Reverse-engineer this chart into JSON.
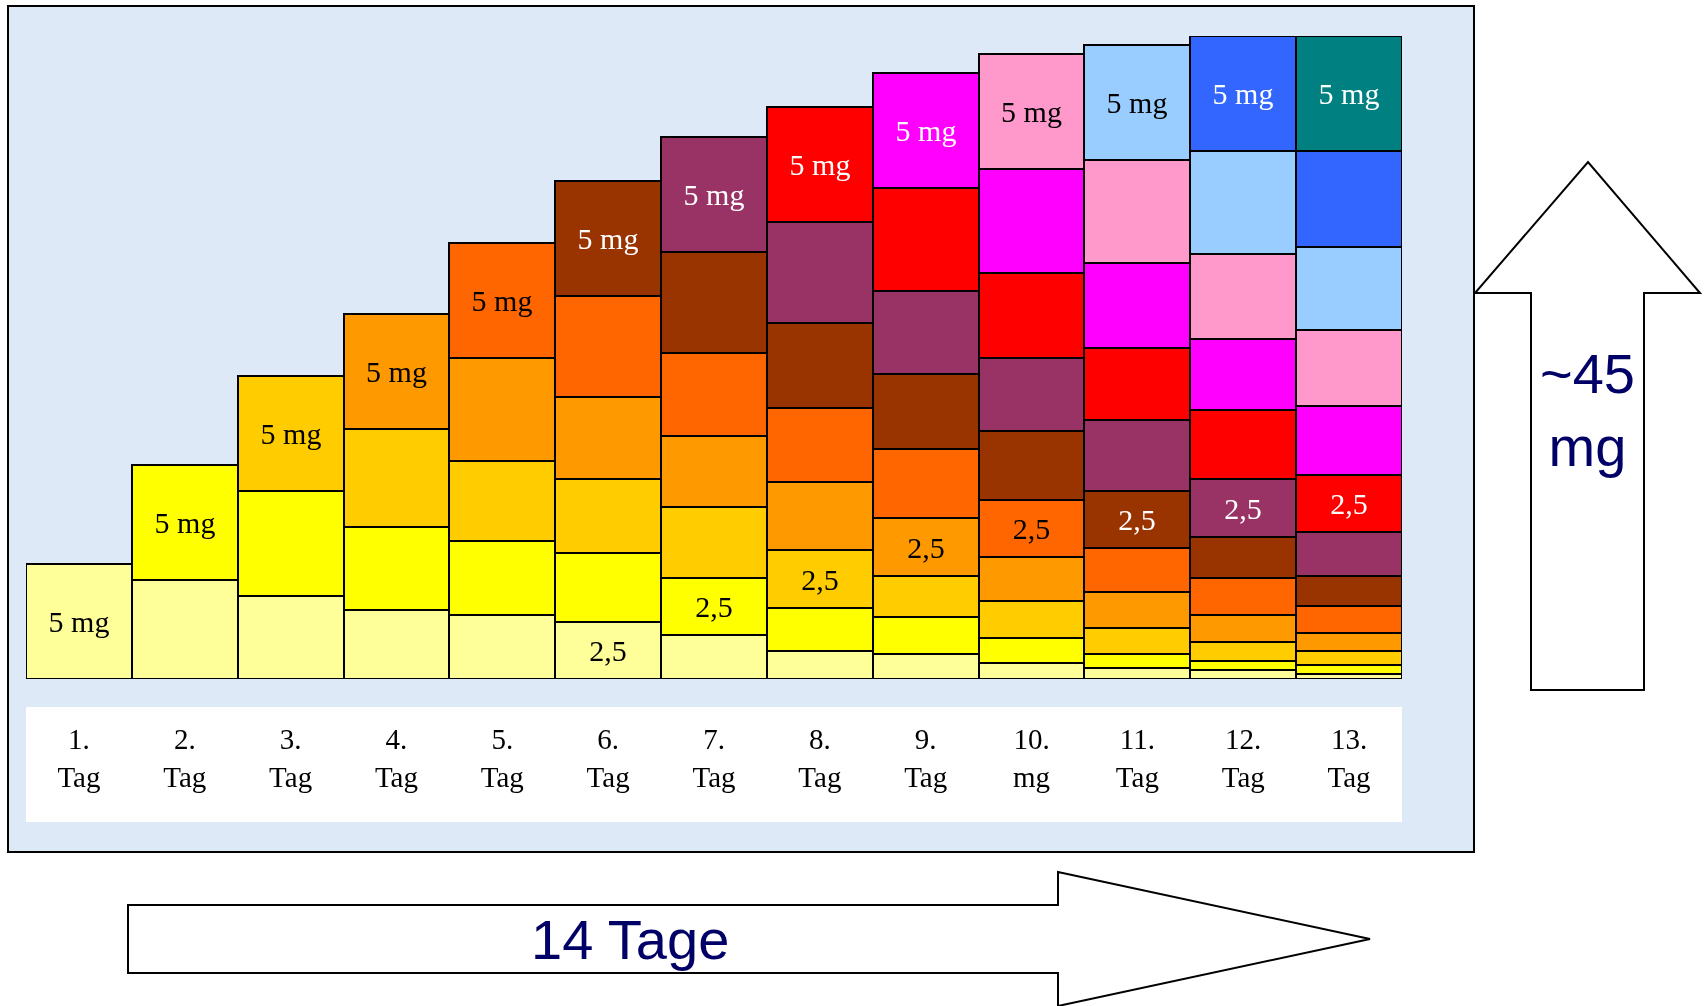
{
  "chart_data": {
    "type": "bar",
    "stacked": true,
    "tick_labels": "x",
    "categories": [
      "1.\nTag",
      "2.\nTag",
      "3.\nTag",
      "4.\nTag",
      "5.\nTag",
      "6.\nTag",
      "7.\nTag",
      "8.\nTag",
      "9.\nTag",
      "10.\nmg",
      "11.\nTag",
      "12.\nTag",
      "13.\nTag"
    ],
    "series": [
      {
        "color": "#ffff99",
        "values": [
          5,
          4.3,
          3.6,
          3.0,
          2.8,
          2.5,
          1.9,
          1.2,
          1.1,
          0.7,
          0.5,
          0.4,
          0.2
        ],
        "value_labels": [
          "5 mg",
          null,
          null,
          null,
          null,
          "2,5",
          null,
          null,
          null,
          null,
          null,
          null,
          null
        ]
      },
      {
        "color": "#ffff00",
        "values": [
          null,
          5,
          4.6,
          3.6,
          3.2,
          3.0,
          2.5,
          1.9,
          1.6,
          1.1,
          0.6,
          0.4,
          0.4
        ],
        "value_labels": [
          null,
          "5 mg",
          null,
          null,
          null,
          null,
          "2,5",
          null,
          null,
          null,
          null,
          null,
          null
        ]
      },
      {
        "color": "#ffcc00",
        "values": [
          null,
          null,
          5,
          4.3,
          3.5,
          3.2,
          3.1,
          2.5,
          1.8,
          1.6,
          1.1,
          0.8,
          0.6
        ],
        "value_labels": [
          null,
          null,
          "5 mg",
          null,
          null,
          null,
          null,
          "2,5",
          null,
          null,
          null,
          null,
          null
        ]
      },
      {
        "color": "#ff9900",
        "values": [
          null,
          null,
          null,
          5,
          4.5,
          3.6,
          3.1,
          3.0,
          2.5,
          1.9,
          1.6,
          1.2,
          0.8
        ],
        "value_labels": [
          null,
          null,
          null,
          "5 mg",
          null,
          null,
          null,
          null,
          "2,5",
          null,
          null,
          null,
          null
        ]
      },
      {
        "color": "#ff6600",
        "values": [
          null,
          null,
          null,
          null,
          5,
          4.4,
          3.6,
          3.2,
          3.0,
          2.5,
          1.9,
          1.6,
          1.2
        ],
        "value_labels": [
          null,
          null,
          null,
          null,
          "5 mg",
          null,
          null,
          null,
          null,
          "2,5",
          null,
          null,
          null
        ]
      },
      {
        "color": "#993300",
        "values": [
          null,
          null,
          null,
          null,
          null,
          5,
          4.4,
          3.7,
          3.3,
          3.0,
          2.5,
          1.8,
          1.3
        ],
        "value_labels": [
          null,
          null,
          null,
          null,
          null,
          "5 mg",
          null,
          null,
          null,
          null,
          "2,5",
          null,
          null
        ]
      },
      {
        "color": "#993366",
        "values": [
          null,
          null,
          null,
          null,
          null,
          null,
          5,
          4.4,
          3.6,
          3.2,
          3.1,
          2.5,
          1.9
        ],
        "value_labels": [
          null,
          null,
          null,
          null,
          null,
          null,
          "5 mg",
          null,
          null,
          null,
          null,
          "2,5",
          null
        ]
      },
      {
        "color": "#ff0000",
        "values": [
          null,
          null,
          null,
          null,
          null,
          null,
          null,
          5,
          4.5,
          3.7,
          3.1,
          3.0,
          2.5
        ],
        "value_labels": [
          null,
          null,
          null,
          null,
          null,
          null,
          null,
          "5 mg",
          null,
          null,
          null,
          null,
          "2,5"
        ]
      },
      {
        "color": "#ff00ff",
        "values": [
          null,
          null,
          null,
          null,
          null,
          null,
          null,
          null,
          5,
          4.5,
          3.7,
          3.1,
          3.0
        ],
        "value_labels": [
          null,
          null,
          null,
          null,
          null,
          null,
          null,
          null,
          "5 mg",
          null,
          null,
          null,
          null
        ]
      },
      {
        "color": "#ff99cc",
        "values": [
          null,
          null,
          null,
          null,
          null,
          null,
          null,
          null,
          null,
          5,
          4.5,
          3.7,
          3.3
        ],
        "value_labels": [
          null,
          null,
          null,
          null,
          null,
          null,
          null,
          null,
          null,
          "5 mg",
          null,
          null,
          null
        ]
      },
      {
        "color": "#99ccff",
        "values": [
          null,
          null,
          null,
          null,
          null,
          null,
          null,
          null,
          null,
          null,
          5,
          4.5,
          3.6
        ],
        "value_labels": [
          null,
          null,
          null,
          null,
          null,
          null,
          null,
          null,
          null,
          null,
          "5 mg",
          null,
          null
        ]
      },
      {
        "color": "#3366ff",
        "values": [
          null,
          null,
          null,
          null,
          null,
          null,
          null,
          null,
          null,
          null,
          null,
          5,
          4.2
        ],
        "value_labels": [
          null,
          null,
          null,
          null,
          null,
          null,
          null,
          null,
          null,
          null,
          null,
          "5 mg",
          null
        ]
      },
      {
        "color": "#008080",
        "values": [
          null,
          null,
          null,
          null,
          null,
          null,
          null,
          null,
          null,
          null,
          null,
          null,
          5
        ],
        "value_labels": [
          null,
          null,
          null,
          null,
          null,
          null,
          null,
          null,
          null,
          null,
          null,
          null,
          "5 mg"
        ]
      }
    ],
    "annotations": [
      "~45\nmg",
      "14 Tage"
    ]
  }
}
